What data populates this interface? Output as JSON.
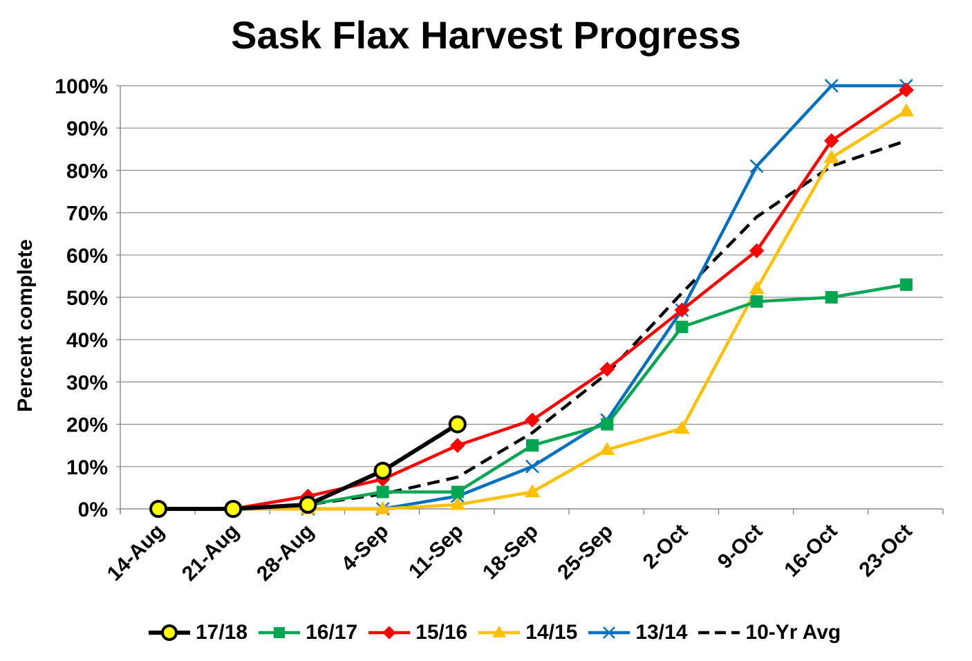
{
  "chart_data": {
    "type": "line",
    "title": "Sask Flax Harvest Progress",
    "xlabel": "",
    "ylabel": "Percent complete",
    "ylim": [
      0,
      100
    ],
    "y_ticks": [
      "0%",
      "10%",
      "20%",
      "30%",
      "40%",
      "50%",
      "60%",
      "70%",
      "80%",
      "90%",
      "100%"
    ],
    "grid": "horizontal",
    "legend_position": "bottom",
    "categories": [
      "14-Aug",
      "21-Aug",
      "28-Aug",
      "4-Sep",
      "11-Sep",
      "18-Sep",
      "25-Sep",
      "2-Oct",
      "9-Oct",
      "16-Oct",
      "23-Oct"
    ],
    "series": [
      {
        "name": "17/18",
        "color": "#000000",
        "marker": "circle",
        "marker_fill": "#ffff00",
        "dash": false,
        "values": [
          0,
          0,
          1,
          9,
          20,
          null,
          null,
          null,
          null,
          null,
          null
        ]
      },
      {
        "name": "16/17",
        "color": "#00a651",
        "marker": "square",
        "dash": false,
        "values": [
          0,
          0,
          1,
          4,
          4,
          15,
          20,
          43,
          49,
          50,
          53
        ]
      },
      {
        "name": "15/16",
        "color": "#ff0000",
        "marker": "diamond",
        "dash": false,
        "values": [
          0,
          0,
          3,
          7,
          15,
          21,
          33,
          47,
          61,
          87,
          99
        ]
      },
      {
        "name": "14/15",
        "color": "#ffc000",
        "marker": "triangle",
        "dash": false,
        "values": [
          0,
          0,
          0,
          0,
          1,
          4,
          14,
          19,
          52,
          83,
          94
        ]
      },
      {
        "name": "13/14",
        "color": "#0070c0",
        "marker": "x",
        "dash": false,
        "values": [
          0,
          0,
          0,
          0,
          3,
          10,
          21,
          47,
          81,
          100,
          100
        ]
      },
      {
        "name": "10-Yr Avg",
        "color": "#000000",
        "marker": "none",
        "dash": true,
        "values": [
          0,
          0,
          1,
          3.5,
          7.5,
          18,
          32,
          51,
          69,
          81,
          87
        ]
      }
    ]
  }
}
